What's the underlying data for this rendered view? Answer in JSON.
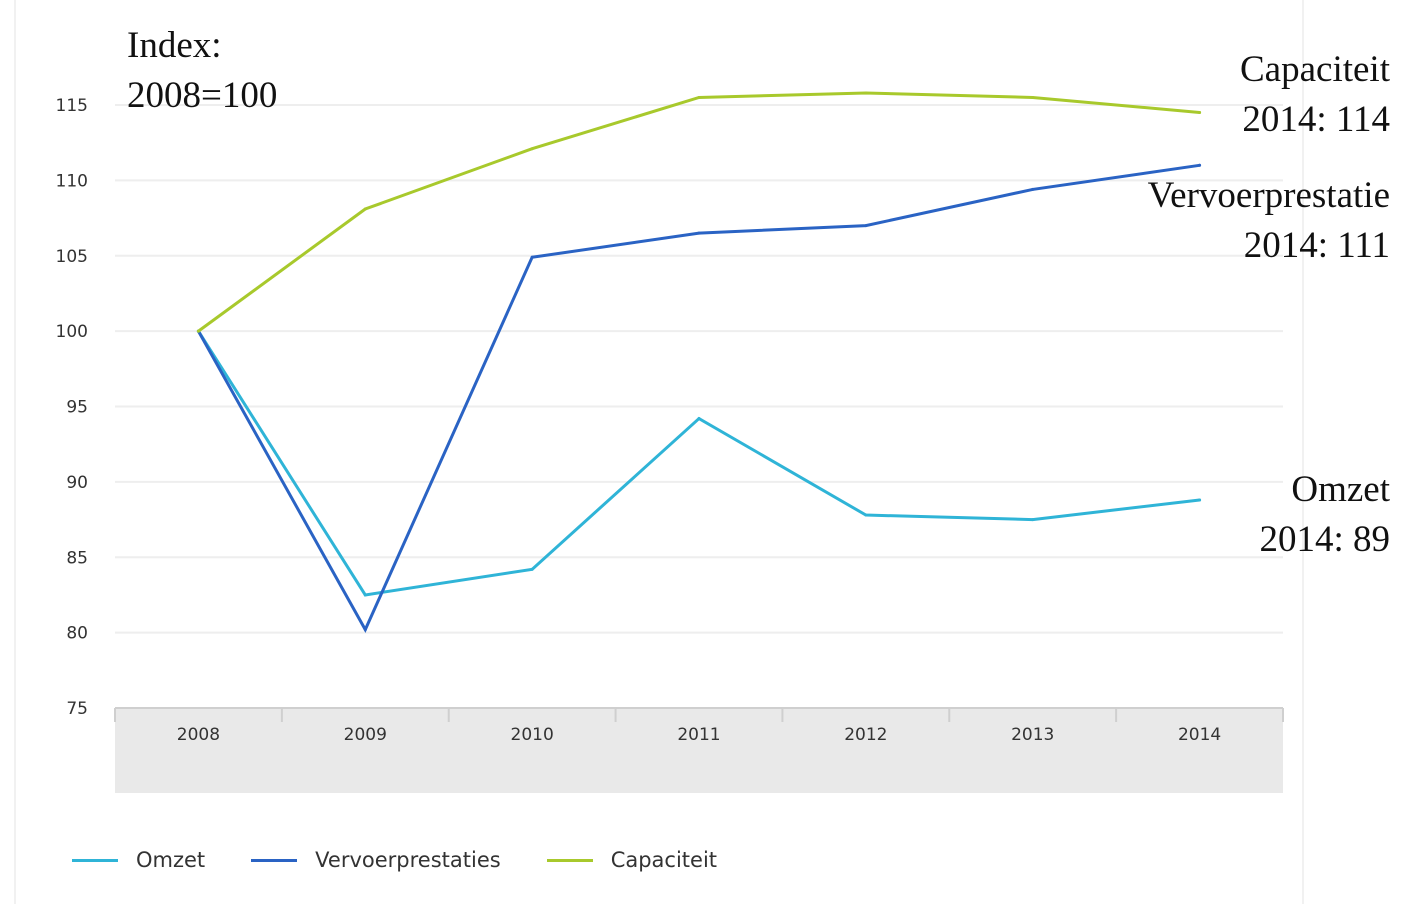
{
  "chart_data": {
    "type": "line",
    "title_lines": [
      "Index:",
      "2008=100"
    ],
    "categories": [
      "2008",
      "2009",
      "2010",
      "2011",
      "2012",
      "2013",
      "2014"
    ],
    "ylim": [
      75,
      115
    ],
    "yticks": [
      "75",
      "80",
      "85",
      "90",
      "95",
      "100",
      "105",
      "110",
      "115"
    ],
    "grid": true,
    "legend_position": "bottom-left",
    "series": [
      {
        "name": "Omzet",
        "color": "#2fb4d7",
        "values": [
          100,
          82.5,
          84.2,
          94.2,
          87.8,
          87.5,
          88.8
        ]
      },
      {
        "name": "Vervoerprestaties",
        "color": "#2a63c4",
        "values": [
          100,
          80.2,
          104.9,
          106.5,
          107,
          109.4,
          111
        ]
      },
      {
        "name": "Capaciteit",
        "color": "#a8c92c",
        "values": [
          100,
          108.1,
          112.1,
          115.5,
          115.8,
          115.5,
          114.5
        ]
      }
    ],
    "annotations": [
      {
        "series": "Capaciteit",
        "lines": [
          "Capaciteit",
          "2014: 114"
        ]
      },
      {
        "series": "Vervoerprestaties",
        "lines": [
          "Vervoerprestatie",
          "2014: 111"
        ]
      },
      {
        "series": "Omzet",
        "lines": [
          "Omzet",
          "2014: 89"
        ]
      }
    ]
  },
  "legend": {
    "items": [
      {
        "label": "Omzet",
        "color": "#2fb4d7"
      },
      {
        "label": "Vervoerprestaties",
        "color": "#2a63c4"
      },
      {
        "label": "Capaciteit",
        "color": "#a8c92c"
      }
    ]
  },
  "colors": {
    "grid": "#eeeeee",
    "axis_band": "#e9e9e9",
    "axis_line": "#cfcfcf"
  }
}
